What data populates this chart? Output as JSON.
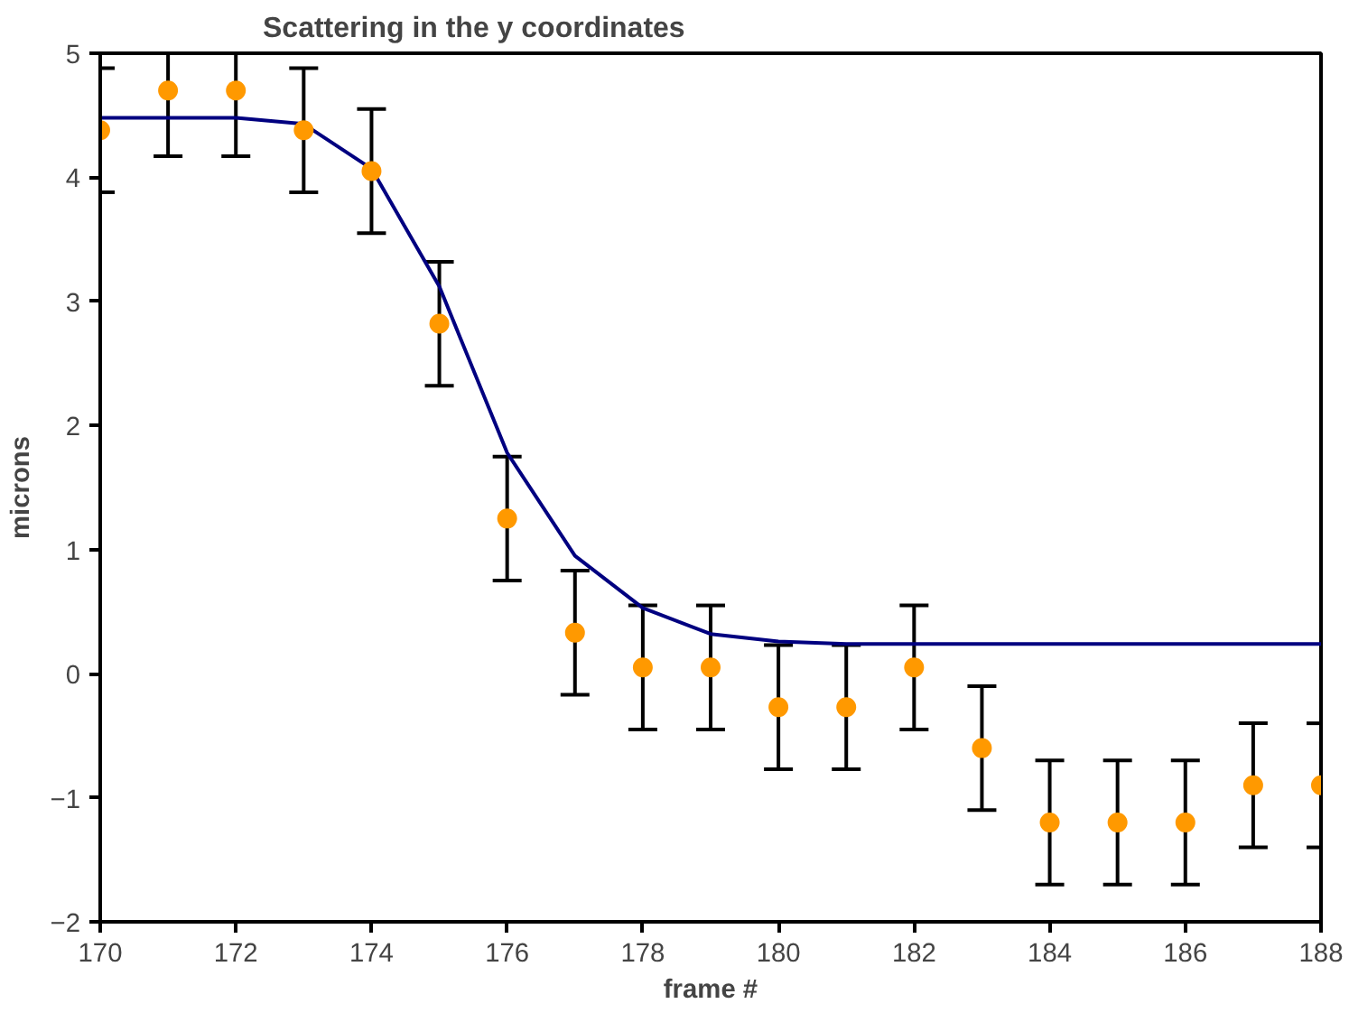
{
  "chart_data": {
    "type": "scatter",
    "title": "Scattering in the  y coordinates",
    "xlabel": "frame #",
    "ylabel": "microns",
    "xlim": [
      170,
      188
    ],
    "xticks": [
      170,
      172,
      174,
      176,
      178,
      180,
      182,
      184,
      186,
      188
    ],
    "ylim": [
      -2,
      5
    ],
    "yticks": [
      -2,
      -1,
      0,
      1,
      2,
      3,
      4,
      5
    ],
    "grid": false,
    "series": [
      {
        "type": "line",
        "color": "#000080",
        "line_style": "solid",
        "x": [
          170,
          171,
          172,
          173,
          174,
          175,
          176,
          177,
          178,
          179,
          180,
          181,
          182,
          183,
          184,
          185,
          186,
          187,
          188
        ],
        "values": [
          4.48,
          4.48,
          4.48,
          4.43,
          4.07,
          3.12,
          1.78,
          0.95,
          0.53,
          0.32,
          0.26,
          0.24,
          0.24,
          0.24,
          0.24,
          0.24,
          0.24,
          0.24,
          0.24
        ]
      },
      {
        "color": "#ff9900",
        "marker": "circle",
        "x": [
          170,
          171,
          172,
          173,
          174,
          175,
          176,
          177,
          178,
          179,
          180,
          181,
          182,
          183,
          184,
          185,
          186,
          187,
          188
        ],
        "values": [
          4.38,
          4.7,
          4.7,
          4.38,
          4.05,
          2.82,
          1.25,
          0.33,
          0.05,
          0.05,
          -0.27,
          -0.27,
          0.05,
          -0.6,
          -1.2,
          -1.2,
          -1.2,
          -0.9,
          -0.9
        ],
        "errors": [
          0.5,
          [
            4.17,
            5
          ],
          [
            4.17,
            5
          ],
          0.5,
          0.5,
          0.5,
          0.5,
          0.5,
          0.5,
          0.5,
          0.5,
          0.5,
          0.5,
          0.5,
          0.5,
          0.5,
          0.5,
          0.5,
          0.5
        ]
      }
    ]
  }
}
